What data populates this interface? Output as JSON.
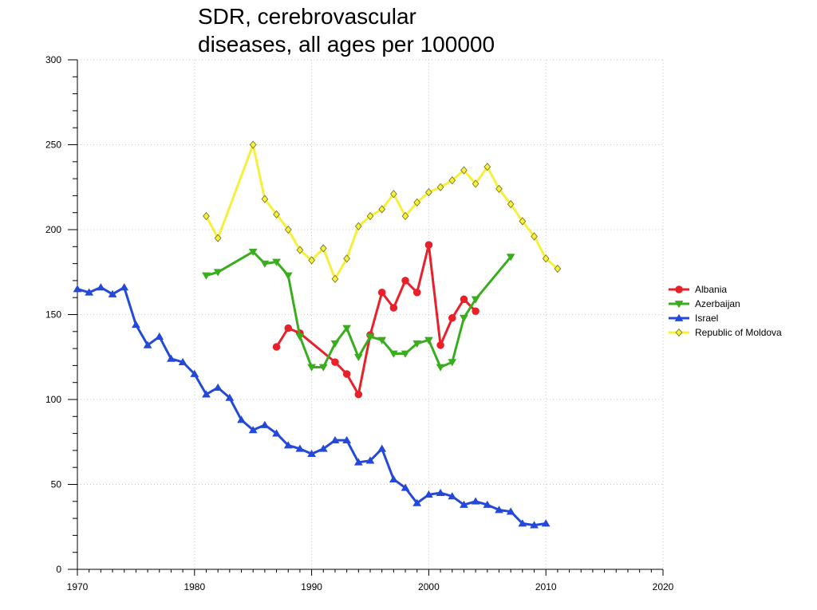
{
  "chart_data": {
    "type": "line",
    "title_lines": [
      "SDR, cerebrovascular",
      "diseases, all ages per 100000"
    ],
    "xlabel": "",
    "ylabel": "",
    "xlim": [
      1970,
      2020
    ],
    "ylim": [
      0,
      300
    ],
    "x_ticks": [
      1970,
      1980,
      1990,
      2000,
      2010,
      2020
    ],
    "y_ticks": [
      0,
      50,
      100,
      150,
      200,
      250,
      300
    ],
    "x_tick_labels": [
      "1970",
      "1980",
      "1990",
      "2000",
      "2010",
      "2020"
    ],
    "y_tick_labels": [
      "0",
      "50",
      "100",
      "150",
      "200",
      "250",
      "300"
    ],
    "grid": true,
    "legend_position": "right",
    "series": [
      {
        "name": "Albania",
        "color": "#e8202a",
        "marker": "circle",
        "points": [
          [
            1987,
            131
          ],
          [
            1988,
            142
          ],
          [
            1989,
            139
          ],
          [
            1992,
            122
          ],
          [
            1993,
            115
          ],
          [
            1994,
            103
          ],
          [
            1995,
            138
          ],
          [
            1996,
            163
          ],
          [
            1997,
            154
          ],
          [
            1998,
            170
          ],
          [
            1999,
            163
          ],
          [
            2000,
            191
          ],
          [
            2001,
            132
          ],
          [
            2002,
            148
          ],
          [
            2003,
            159
          ],
          [
            2004,
            152
          ]
        ]
      },
      {
        "name": "Azerbaijan",
        "color": "#3aad1f",
        "marker": "triangle-down",
        "points": [
          [
            1981,
            173
          ],
          [
            1982,
            175
          ],
          [
            1985,
            187
          ],
          [
            1986,
            180
          ],
          [
            1987,
            181
          ],
          [
            1988,
            173
          ],
          [
            1989,
            137
          ],
          [
            1990,
            119
          ],
          [
            1991,
            119
          ],
          [
            1992,
            133
          ],
          [
            1993,
            142
          ],
          [
            1994,
            125
          ],
          [
            1995,
            137
          ],
          [
            1996,
            135
          ],
          [
            1997,
            127
          ],
          [
            1998,
            127
          ],
          [
            1999,
            133
          ],
          [
            2000,
            135
          ],
          [
            2001,
            119
          ],
          [
            2002,
            122
          ],
          [
            2003,
            148
          ],
          [
            2004,
            159
          ],
          [
            2007,
            184
          ]
        ]
      },
      {
        "name": "Israel",
        "color": "#2449d8",
        "marker": "triangle-up",
        "points": [
          [
            1970,
            165
          ],
          [
            1971,
            163
          ],
          [
            1972,
            166
          ],
          [
            1973,
            162
          ],
          [
            1974,
            166
          ],
          [
            1975,
            144
          ],
          [
            1976,
            132
          ],
          [
            1977,
            137
          ],
          [
            1978,
            124
          ],
          [
            1979,
            122
          ],
          [
            1980,
            115
          ],
          [
            1981,
            103
          ],
          [
            1982,
            107
          ],
          [
            1983,
            101
          ],
          [
            1984,
            88
          ],
          [
            1985,
            82
          ],
          [
            1986,
            85
          ],
          [
            1987,
            80
          ],
          [
            1988,
            73
          ],
          [
            1989,
            71
          ],
          [
            1990,
            68
          ],
          [
            1991,
            71
          ],
          [
            1992,
            76
          ],
          [
            1993,
            76
          ],
          [
            1994,
            63
          ],
          [
            1995,
            64
          ],
          [
            1996,
            71
          ],
          [
            1997,
            53
          ],
          [
            1998,
            48
          ],
          [
            1999,
            39
          ],
          [
            2000,
            44
          ],
          [
            2001,
            45
          ],
          [
            2002,
            43
          ],
          [
            2003,
            38
          ],
          [
            2004,
            40
          ],
          [
            2005,
            38
          ],
          [
            2006,
            35
          ],
          [
            2007,
            34
          ],
          [
            2008,
            27
          ],
          [
            2009,
            26
          ],
          [
            2010,
            27
          ]
        ]
      },
      {
        "name": "Republic of Moldova",
        "color": "#f7f03a",
        "marker": "diamond",
        "points": [
          [
            1981,
            208
          ],
          [
            1982,
            195
          ],
          [
            1985,
            250
          ],
          [
            1986,
            218
          ],
          [
            1987,
            209
          ],
          [
            1988,
            200
          ],
          [
            1989,
            188
          ],
          [
            1990,
            182
          ],
          [
            1991,
            189
          ],
          [
            1992,
            171
          ],
          [
            1993,
            183
          ],
          [
            1994,
            202
          ],
          [
            1995,
            208
          ],
          [
            1996,
            212
          ],
          [
            1997,
            221
          ],
          [
            1998,
            208
          ],
          [
            1999,
            216
          ],
          [
            2000,
            222
          ],
          [
            2001,
            225
          ],
          [
            2002,
            229
          ],
          [
            2003,
            235
          ],
          [
            2004,
            227
          ],
          [
            2005,
            237
          ],
          [
            2006,
            224
          ],
          [
            2007,
            215
          ],
          [
            2008,
            205
          ],
          [
            2009,
            196
          ],
          [
            2010,
            183
          ],
          [
            2011,
            177
          ]
        ]
      }
    ]
  }
}
